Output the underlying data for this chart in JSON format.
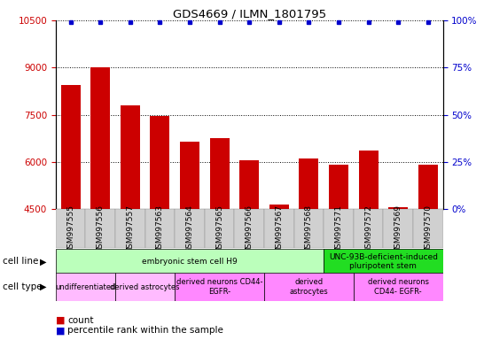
{
  "title": "GDS4669 / ILMN_1801795",
  "samples": [
    "GSM997555",
    "GSM997556",
    "GSM997557",
    "GSM997563",
    "GSM997564",
    "GSM997565",
    "GSM997566",
    "GSM997567",
    "GSM997568",
    "GSM997571",
    "GSM997572",
    "GSM997569",
    "GSM997570"
  ],
  "counts": [
    8450,
    9000,
    7800,
    7450,
    6650,
    6750,
    6050,
    4650,
    6100,
    5900,
    6350,
    4550,
    5900
  ],
  "percentiles": [
    99,
    99,
    99,
    99,
    99,
    99,
    99,
    99,
    99,
    99,
    99,
    99,
    99
  ],
  "ylim": [
    4500,
    10500
  ],
  "yticks": [
    4500,
    6000,
    7500,
    9000,
    10500
  ],
  "y2ticks": [
    0,
    25,
    50,
    75,
    100
  ],
  "y2lim": [
    0,
    100
  ],
  "bar_color": "#cc0000",
  "dot_color": "#0000cc",
  "bar_bottom": 4500,
  "cell_line_groups": [
    {
      "label": "embryonic stem cell H9",
      "start": 0,
      "end": 9,
      "color": "#bbffbb"
    },
    {
      "label": "UNC-93B-deficient-induced\npluripotent stem",
      "start": 9,
      "end": 13,
      "color": "#22dd22"
    }
  ],
  "cell_type_groups": [
    {
      "label": "undifferentiated",
      "start": 0,
      "end": 2,
      "color": "#ffbbff"
    },
    {
      "label": "derived astrocytes",
      "start": 2,
      "end": 4,
      "color": "#ffbbff"
    },
    {
      "label": "derived neurons CD44-\nEGFR-",
      "start": 4,
      "end": 7,
      "color": "#ff88ff"
    },
    {
      "label": "derived\nastrocytes",
      "start": 7,
      "end": 10,
      "color": "#ff88ff"
    },
    {
      "label": "derived neurons\nCD44- EGFR-",
      "start": 10,
      "end": 13,
      "color": "#ff88ff"
    }
  ]
}
